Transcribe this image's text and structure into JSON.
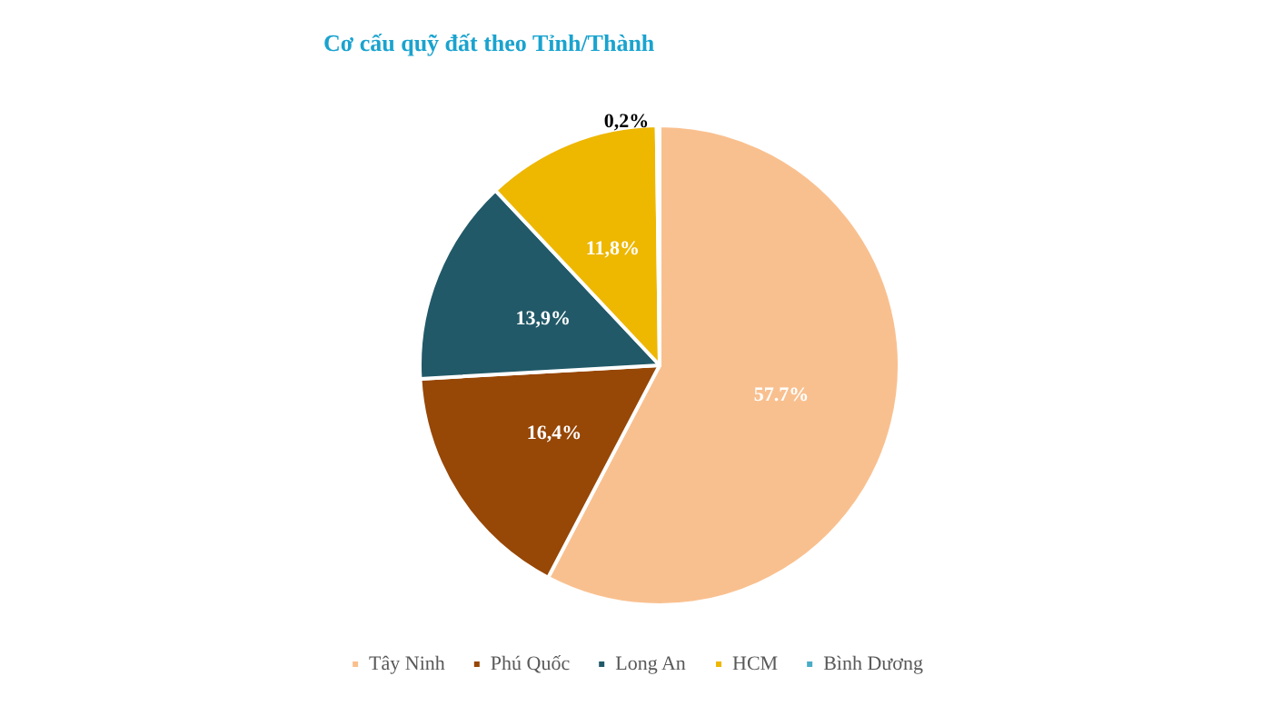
{
  "chart_data": {
    "type": "pie",
    "title": "Cơ cấu quỹ đất theo Tỉnh/Thành",
    "categories": [
      "Tây Ninh",
      "Phú Quốc",
      "Long An",
      "HCM",
      "Bình Dương"
    ],
    "values": [
      57.7,
      16.4,
      13.9,
      11.8,
      0.2
    ],
    "value_labels": [
      "57.7%",
      "16,4%",
      "13,9%",
      "11,8%",
      "0,2%"
    ],
    "colors": [
      "#f9c08f",
      "#974706",
      "#215968",
      "#eeb700",
      "#4bacc6"
    ],
    "legend": "bottom"
  }
}
